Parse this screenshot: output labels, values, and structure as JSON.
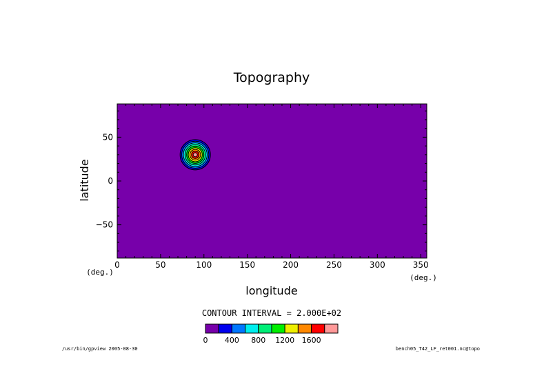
{
  "chart_data": {
    "type": "heatmap",
    "title": "Topography",
    "xlabel": "longitude",
    "ylabel": "latitude",
    "x_unit": "(deg.)",
    "y_unit": "(deg.)",
    "xlim": [
      0,
      357
    ],
    "ylim": [
      -88,
      88
    ],
    "x_ticks": [
      0,
      50,
      100,
      150,
      200,
      250,
      300,
      350
    ],
    "y_ticks": [
      -50,
      0,
      50
    ],
    "y_tick_labels": [
      "−50",
      "0",
      "50"
    ],
    "field": {
      "kind": "isolated-mountain",
      "center_lon": 90,
      "center_lat": 30,
      "peak_height": 2000,
      "background_value": 0
    },
    "contour_levels": [
      200,
      400,
      600,
      800,
      1000,
      1200,
      1400,
      1600,
      1800
    ],
    "contour_interval_label": "CONTOUR INTERVAL = 2.000E+02",
    "colorbar": {
      "boundaries": [
        0,
        200,
        400,
        600,
        800,
        1000,
        1200,
        1400,
        1600,
        1800,
        2000
      ],
      "colors": [
        "#7700aa",
        "#0000ee",
        "#0077ff",
        "#00eeee",
        "#00ee77",
        "#00ee00",
        "#eeee00",
        "#ff8800",
        "#ff0000",
        "#ff9999"
      ],
      "labels": [
        "0",
        "400",
        "800",
        "1200",
        "1600"
      ],
      "label_values": [
        0,
        400,
        800,
        1200,
        1600
      ]
    },
    "grid": false
  },
  "footer": {
    "left": "/usr/bin/gpview  2005-08-30",
    "right": "bench05_T42_LF_ret001.nc@topo"
  }
}
